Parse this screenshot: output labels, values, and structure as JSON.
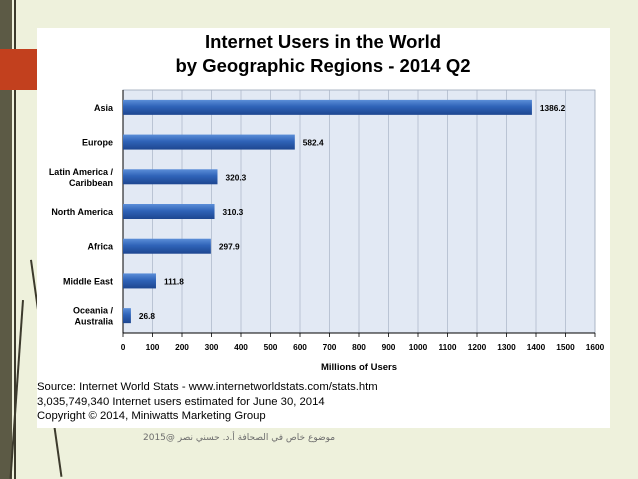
{
  "chart_data": {
    "type": "bar",
    "orientation": "horizontal",
    "title": "Internet Users in the World",
    "subtitle": "by Geographic Regions - 2014 Q2",
    "categories": [
      "Asia",
      "Europe",
      "Latin America / Caribbean",
      "North America",
      "Africa",
      "Middle East",
      "Oceania / Australia"
    ],
    "category_lines": [
      [
        "Asia"
      ],
      [
        "Europe"
      ],
      [
        "Latin America /",
        "Caribbean"
      ],
      [
        "North America"
      ],
      [
        "Africa"
      ],
      [
        "Middle East"
      ],
      [
        "Oceania  /",
        "Australia"
      ]
    ],
    "values": [
      1386.2,
      582.4,
      320.3,
      310.3,
      297.9,
      111.8,
      26.8
    ],
    "data_labels": [
      "1386.2",
      "582.4",
      "320.3",
      "310.3",
      "297.9",
      "111.8",
      "26.8"
    ],
    "xlabel": "Millions of Users",
    "ylabel": "",
    "xlim": [
      0,
      1600
    ],
    "xticks": [
      0,
      100,
      200,
      300,
      400,
      500,
      600,
      700,
      800,
      900,
      1000,
      1100,
      1200,
      1300,
      1400,
      1500,
      1600
    ],
    "grid": true,
    "bar_color": "#2f63b8",
    "plot_background": "#e2e9f4"
  },
  "source": {
    "line1": "Source: Internet World Stats - www.internetworldstats.com/stats.htm",
    "line2": "3,035,749,340 Internet users estimated for June 30, 2014",
    "line3": "Copyright © 2014, Miniwatts Marketing Group"
  },
  "footer_note": "موضوع خاص في الصحافة     أ.د. حسني نصر @2015",
  "colors": {
    "slide_background": "#eef1dc",
    "accent": "#c2401e",
    "left_band": "#5c5a45"
  }
}
